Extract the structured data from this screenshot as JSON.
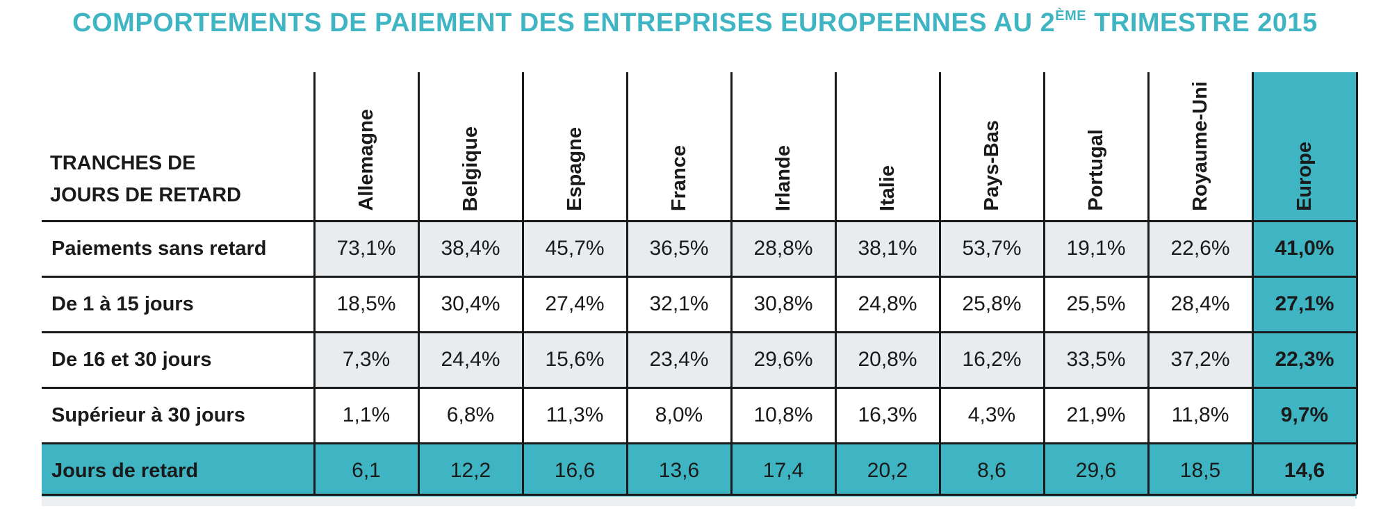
{
  "title": {
    "main": "COMPORTEMENTS DE PAIEMENT DES ENTREPRISES EUROPEENNES AU 2",
    "sup": "ÈME",
    "tail": " TRIMESTRE 2015"
  },
  "colors": {
    "title": "#3fb5c3",
    "accent": "#3fb5c3",
    "grey_cell": "#e9ecee"
  },
  "chart_data": {
    "type": "table",
    "row_header_label": [
      "TRANCHES DE",
      "JOURS DE RETARD"
    ],
    "columns": [
      "Allemagne",
      "Belgique",
      "Espagne",
      "France",
      "Irlande",
      "Italie",
      "Pays-Bas",
      "Portugal",
      "Royaume-Uni",
      "Europe"
    ],
    "rows": [
      {
        "label": "Paiements sans retard",
        "values": [
          "73,1%",
          "38,4%",
          "45,7%",
          "36,5%",
          "28,8%",
          "38,1%",
          "53,7%",
          "19,1%",
          "22,6%",
          "41,0%"
        ]
      },
      {
        "label": "De 1 à 15 jours",
        "values": [
          "18,5%",
          "30,4%",
          "27,4%",
          "32,1%",
          "30,8%",
          "24,8%",
          "25,8%",
          "25,5%",
          "28,4%",
          "27,1%"
        ]
      },
      {
        "label": "De 16 et 30 jours",
        "values": [
          "7,3%",
          "24,4%",
          "15,6%",
          "23,4%",
          "29,6%",
          "20,8%",
          "16,2%",
          "33,5%",
          "37,2%",
          "22,3%"
        ]
      },
      {
        "label": "Supérieur à 30 jours",
        "values": [
          "1,1%",
          "6,8%",
          "11,3%",
          "8,0%",
          "10,8%",
          "16,3%",
          "4,3%",
          "21,9%",
          "11,8%",
          "9,7%"
        ]
      },
      {
        "label": "Jours de retard",
        "values": [
          "6,1",
          "12,2",
          "16,6",
          "13,6",
          "17,4",
          "20,2",
          "8,6",
          "29,6",
          "18,5",
          "14,6"
        ]
      }
    ]
  }
}
